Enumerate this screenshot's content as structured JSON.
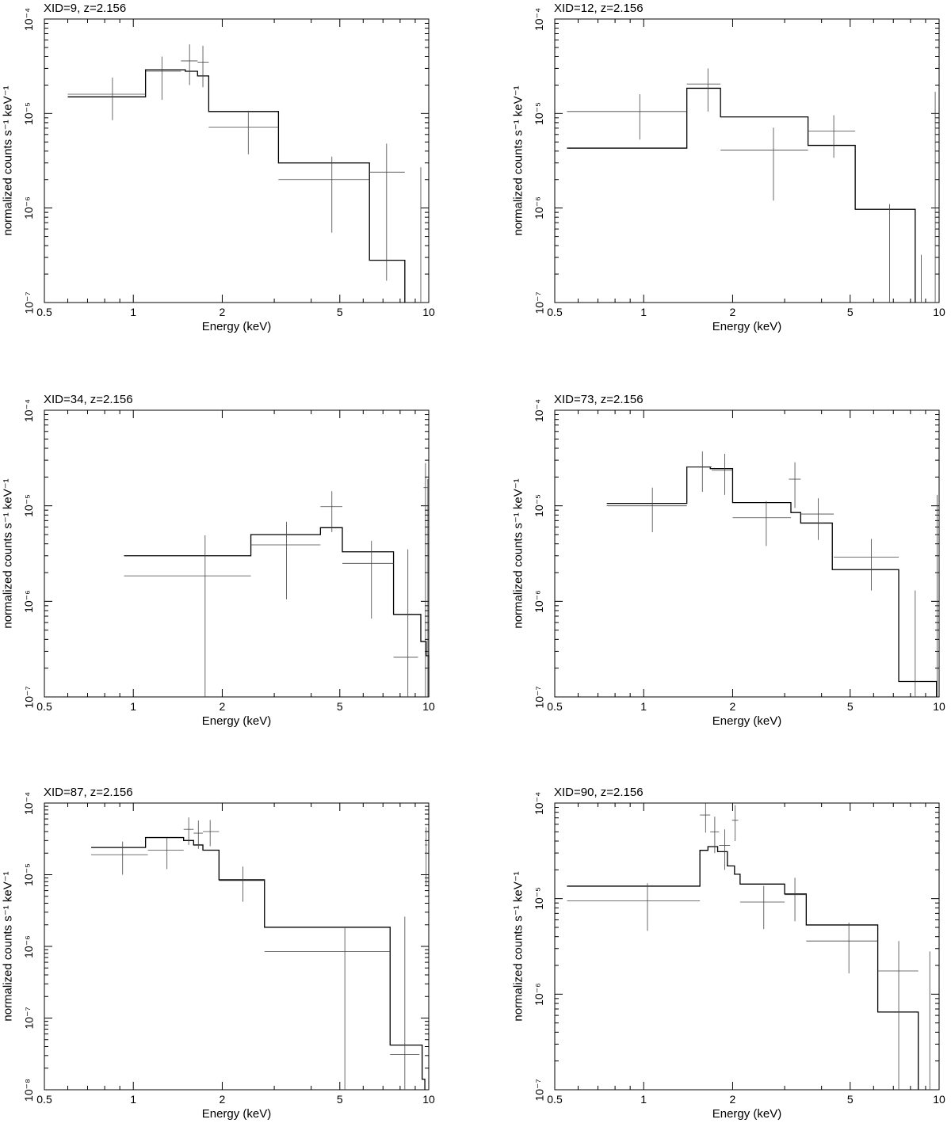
{
  "chart_data": [
    {
      "type": "step",
      "title": "XID=9, z=2.156",
      "xlabel": "Energy (keV)",
      "ylabel": "normalized counts s⁻¹ keV⁻¹",
      "xscale": "log",
      "yscale": "log",
      "xlim": [
        0.5,
        10
      ],
      "ylim": [
        1e-07,
        0.0001
      ],
      "xticks": [
        0.5,
        1,
        2,
        5,
        10
      ],
      "xtick_labels": [
        "0.5",
        "1",
        "2",
        "5",
        "10"
      ],
      "yticks": [
        1e-07,
        1e-06,
        1e-05,
        0.0001
      ],
      "ytick_labels": [
        "10⁻⁷",
        "10⁻⁶",
        "10⁻⁵",
        "10⁻⁴"
      ],
      "model": [
        [
          0.6,
          1.1,
          1.5e-05
        ],
        [
          1.1,
          1.5,
          2.9e-05
        ],
        [
          1.5,
          1.65,
          2.8e-05
        ],
        [
          1.65,
          1.8,
          2.5e-05
        ],
        [
          1.8,
          3.1,
          1.05e-05
        ],
        [
          3.1,
          6.3,
          3e-06
        ],
        [
          6.3,
          8.3,
          2.8e-07
        ]
      ],
      "data": [
        {
          "x": 0.85,
          "xlo": 0.6,
          "xhi": 1.1,
          "y": 1.6e-05,
          "ylo": 8.5e-06,
          "yhi": 2.4e-05
        },
        {
          "x": 1.25,
          "xlo": 1.1,
          "xhi": 1.45,
          "y": 2.8e-05,
          "ylo": 1.4e-05,
          "yhi": 4e-05
        },
        {
          "x": 1.55,
          "xlo": 1.45,
          "xhi": 1.65,
          "y": 3.6e-05,
          "ylo": 2e-05,
          "yhi": 5.4e-05
        },
        {
          "x": 1.72,
          "xlo": 1.65,
          "xhi": 1.8,
          "y": 3.5e-05,
          "ylo": 1.9e-05,
          "yhi": 5.2e-05
        },
        {
          "x": 2.45,
          "xlo": 1.8,
          "xhi": 3.1,
          "y": 7.2e-06,
          "ylo": 3.7e-06,
          "yhi": 1.07e-05
        },
        {
          "x": 4.7,
          "xlo": 3.1,
          "xhi": 6.3,
          "y": 2e-06,
          "ylo": 5.5e-07,
          "yhi": 3.5e-06
        },
        {
          "x": 7.2,
          "xlo": 6.3,
          "xhi": 8.3,
          "y": 2.4e-06,
          "ylo": 1.7e-07,
          "yhi": 4.8e-06
        },
        {
          "x": 9.4,
          "xlo": 9.4,
          "xhi": 9.4,
          "y": 2.7e-06,
          "ylo": 1e-07,
          "yhi": 2.7e-06
        }
      ]
    },
    {
      "type": "step",
      "title": "XID=12, z=2.156",
      "xlabel": "Energy (keV)",
      "ylabel": "normalized counts s⁻¹ keV⁻¹",
      "xscale": "log",
      "yscale": "log",
      "xlim": [
        0.5,
        10
      ],
      "ylim": [
        1e-07,
        0.0001
      ],
      "xticks": [
        0.5,
        1,
        2,
        5,
        10
      ],
      "xtick_labels": [
        "0.5",
        "1",
        "2",
        "5",
        "10"
      ],
      "yticks": [
        1e-07,
        1e-06,
        1e-05,
        0.0001
      ],
      "ytick_labels": [
        "10⁻⁷",
        "10⁻⁶",
        "10⁻⁵",
        "10⁻⁴"
      ],
      "model": [
        [
          0.55,
          1.4,
          4.3e-06
        ],
        [
          1.4,
          1.82,
          1.85e-05
        ],
        [
          1.82,
          3.6,
          9.2e-06
        ],
        [
          3.6,
          5.2,
          4.6e-06
        ],
        [
          5.2,
          8.3,
          9.7e-07
        ]
      ],
      "data": [
        {
          "x": 0.97,
          "xlo": 0.55,
          "xhi": 1.4,
          "y": 1.05e-05,
          "ylo": 5.3e-06,
          "yhi": 1.6e-05
        },
        {
          "x": 1.65,
          "xlo": 1.4,
          "xhi": 1.82,
          "y": 2.05e-05,
          "ylo": 1.05e-05,
          "yhi": 3e-05
        },
        {
          "x": 2.75,
          "xlo": 1.82,
          "xhi": 3.6,
          "y": 4.1e-06,
          "ylo": 1.2e-06,
          "yhi": 7.1e-06
        },
        {
          "x": 4.4,
          "xlo": 3.6,
          "xhi": 5.2,
          "y": 6.5e-06,
          "ylo": 3.4e-06,
          "yhi": 9.6e-06
        },
        {
          "x": 6.8,
          "xlo": 6.8,
          "xhi": 6.8,
          "y": 1.1e-06,
          "ylo": 1e-07,
          "yhi": 1.1e-06
        },
        {
          "x": 8.7,
          "xlo": 8.7,
          "xhi": 8.7,
          "y": 3.2e-07,
          "ylo": 1e-07,
          "yhi": 3.2e-07
        },
        {
          "x": 9.7,
          "xlo": 9.7,
          "xhi": 9.7,
          "y": 1.7e-05,
          "ylo": 1e-07,
          "yhi": 1.7e-05
        }
      ]
    },
    {
      "type": "step",
      "title": "XID=34, z=2.156",
      "xlabel": "Energy (keV)",
      "ylabel": "normalized counts s⁻¹ keV⁻¹",
      "xscale": "log",
      "yscale": "log",
      "xlim": [
        0.5,
        10
      ],
      "ylim": [
        1e-07,
        0.0001
      ],
      "xticks": [
        0.5,
        1,
        2,
        5,
        10
      ],
      "xtick_labels": [
        "0.5",
        "1",
        "2",
        "5",
        "10"
      ],
      "yticks": [
        1e-07,
        1e-06,
        1e-05,
        0.0001
      ],
      "ytick_labels": [
        "10⁻⁷",
        "10⁻⁶",
        "10⁻⁵",
        "10⁻⁴"
      ],
      "model": [
        [
          0.93,
          2.5,
          3e-06
        ],
        [
          2.5,
          4.3,
          5e-06
        ],
        [
          4.3,
          5.1,
          5.9e-06
        ],
        [
          5.1,
          7.6,
          3.3e-06
        ],
        [
          7.6,
          9.4,
          7.3e-07
        ],
        [
          9.4,
          9.8,
          3.8e-07
        ],
        [
          9.8,
          10.0,
          2.7e-07
        ]
      ],
      "data": [
        {
          "x": 1.75,
          "xlo": 0.93,
          "xhi": 2.5,
          "y": 1.85e-06,
          "ylo": 1e-07,
          "yhi": 4.9e-06
        },
        {
          "x": 3.3,
          "xlo": 2.5,
          "xhi": 4.3,
          "y": 3.9e-06,
          "ylo": 1.05e-06,
          "yhi": 6.8e-06
        },
        {
          "x": 4.7,
          "xlo": 4.3,
          "xhi": 5.1,
          "y": 9.8e-06,
          "ylo": 5.3e-06,
          "yhi": 1.42e-05
        },
        {
          "x": 6.4,
          "xlo": 5.1,
          "xhi": 7.6,
          "y": 2.5e-06,
          "ylo": 6.6e-07,
          "yhi": 4.3e-06
        },
        {
          "x": 8.5,
          "xlo": 7.6,
          "xhi": 9.2,
          "y": 2.6e-07,
          "ylo": 1e-07,
          "yhi": 3.5e-06
        },
        {
          "x": 9.75,
          "xlo": 9.6,
          "xhi": 9.9,
          "y": 1.55e-05,
          "ylo": 1e-07,
          "yhi": 2.8e-05
        },
        {
          "x": 9.93,
          "xlo": 9.93,
          "xhi": 9.93,
          "y": 1.9e-05,
          "ylo": 1e-07,
          "yhi": 1.9e-05
        }
      ]
    },
    {
      "type": "step",
      "title": "XID=73, z=2.156",
      "xlabel": "Energy (keV)",
      "ylabel": "normalized counts s⁻¹ keV⁻¹",
      "xscale": "log",
      "yscale": "log",
      "xlim": [
        0.5,
        10
      ],
      "ylim": [
        1e-07,
        0.0001
      ],
      "xticks": [
        0.5,
        1,
        2,
        5,
        10
      ],
      "xtick_labels": [
        "0.5",
        "1",
        "2",
        "5",
        "10"
      ],
      "yticks": [
        1e-07,
        1e-06,
        1e-05,
        0.0001
      ],
      "ytick_labels": [
        "10⁻⁷",
        "10⁻⁶",
        "10⁻⁵",
        "10⁻⁴"
      ],
      "model": [
        [
          0.75,
          1.4,
          1.06e-05
        ],
        [
          1.4,
          1.68,
          2.55e-05
        ],
        [
          1.68,
          2.0,
          2.45e-05
        ],
        [
          2.0,
          3.15,
          1.08e-05
        ],
        [
          3.15,
          3.4,
          8.5e-06
        ],
        [
          3.4,
          4.35,
          6.6e-06
        ],
        [
          4.35,
          7.3,
          2.15e-06
        ],
        [
          7.3,
          9.8,
          1.45e-07
        ]
      ],
      "data": [
        {
          "x": 1.07,
          "xlo": 0.75,
          "xhi": 1.4,
          "y": 1e-05,
          "ylo": 5.3e-06,
          "yhi": 1.55e-05
        },
        {
          "x": 1.58,
          "xlo": 1.4,
          "xhi": 1.7,
          "y": 2.55e-05,
          "ylo": 1.4e-05,
          "yhi": 3.7e-05
        },
        {
          "x": 1.88,
          "xlo": 1.7,
          "xhi": 2.0,
          "y": 2.35e-05,
          "ylo": 1.3e-05,
          "yhi": 3.5e-05
        },
        {
          "x": 2.6,
          "xlo": 2.0,
          "xhi": 3.15,
          "y": 7.5e-06,
          "ylo": 3.8e-06,
          "yhi": 1.12e-05
        },
        {
          "x": 3.25,
          "xlo": 3.1,
          "xhi": 3.4,
          "y": 1.9e-05,
          "ylo": 9.5e-06,
          "yhi": 2.85e-05
        },
        {
          "x": 3.9,
          "xlo": 3.4,
          "xhi": 4.4,
          "y": 8.2e-06,
          "ylo": 4.4e-06,
          "yhi": 1.2e-05
        },
        {
          "x": 5.9,
          "xlo": 4.4,
          "xhi": 7.3,
          "y": 2.9e-06,
          "ylo": 1.3e-06,
          "yhi": 4.5e-06
        },
        {
          "x": 8.3,
          "xlo": 8.3,
          "xhi": 8.3,
          "y": 1.3e-06,
          "ylo": 1e-07,
          "yhi": 1.3e-06
        },
        {
          "x": 9.85,
          "xlo": 9.85,
          "xhi": 9.85,
          "y": 1.3e-05,
          "ylo": 1e-07,
          "yhi": 1.3e-05
        }
      ]
    },
    {
      "type": "step",
      "title": "XID=87, z=2.156",
      "xlabel": "Energy (keV)",
      "ylabel": "normalized counts s⁻¹ keV⁻¹",
      "xscale": "log",
      "yscale": "log",
      "xlim": [
        0.5,
        10
      ],
      "ylim": [
        1e-08,
        0.0001
      ],
      "xticks": [
        0.5,
        1,
        2,
        5,
        10
      ],
      "xtick_labels": [
        "0.5",
        "1",
        "2",
        "5",
        "10"
      ],
      "yticks": [
        1e-08,
        1e-07,
        1e-06,
        1e-05,
        0.0001
      ],
      "ytick_labels": [
        "10⁻⁸",
        "10⁻⁷",
        "10⁻⁶",
        "10⁻⁵",
        "10⁻⁴"
      ],
      "model": [
        [
          0.72,
          1.1,
          2.4e-05
        ],
        [
          1.1,
          1.48,
          3.3e-05
        ],
        [
          1.48,
          1.6,
          3e-05
        ],
        [
          1.6,
          1.72,
          2.6e-05
        ],
        [
          1.72,
          1.95,
          2.2e-05
        ],
        [
          1.95,
          2.78,
          8.5e-06
        ],
        [
          2.78,
          7.4,
          1.85e-06
        ],
        [
          7.4,
          9.5,
          4.2e-08
        ],
        [
          9.5,
          9.7,
          1.4e-08
        ]
      ],
      "data": [
        {
          "x": 0.92,
          "xlo": 0.72,
          "xhi": 1.12,
          "y": 1.9e-05,
          "ylo": 1e-05,
          "yhi": 2.9e-05
        },
        {
          "x": 1.3,
          "xlo": 1.12,
          "xhi": 1.48,
          "y": 2.2e-05,
          "ylo": 1.2e-05,
          "yhi": 3.3e-05
        },
        {
          "x": 1.54,
          "xlo": 1.48,
          "xhi": 1.6,
          "y": 4.3e-05,
          "ylo": 2.6e-05,
          "yhi": 6.3e-05
        },
        {
          "x": 1.66,
          "xlo": 1.6,
          "xhi": 1.72,
          "y": 3.8e-05,
          "ylo": 2.3e-05,
          "yhi": 5.7e-05
        },
        {
          "x": 1.82,
          "xlo": 1.72,
          "xhi": 1.95,
          "y": 4e-05,
          "ylo": 2.5e-05,
          "yhi": 5.8e-05
        },
        {
          "x": 2.35,
          "xlo": 1.95,
          "xhi": 2.78,
          "y": 8.3e-06,
          "ylo": 4.2e-06,
          "yhi": 1.3e-05
        },
        {
          "x": 5.2,
          "xlo": 2.78,
          "xhi": 7.4,
          "y": 8.5e-07,
          "ylo": 1e-08,
          "yhi": 1.8e-06
        },
        {
          "x": 8.3,
          "xlo": 7.4,
          "xhi": 9.3,
          "y": 3.1e-08,
          "ylo": 1e-08,
          "yhi": 2.6e-06
        },
        {
          "x": 9.8,
          "xlo": 9.7,
          "xhi": 9.9,
          "y": 2.6e-05,
          "ylo": 7e-06,
          "yhi": 4.6e-05
        }
      ]
    },
    {
      "type": "step",
      "title": "XID=90, z=2.156",
      "xlabel": "Energy (keV)",
      "ylabel": "normalized counts s⁻¹ keV⁻¹",
      "xscale": "log",
      "yscale": "log",
      "xlim": [
        0.5,
        10
      ],
      "ylim": [
        1e-07,
        0.0001
      ],
      "xticks": [
        0.5,
        1,
        2,
        5,
        10
      ],
      "xtick_labels": [
        "0.5",
        "1",
        "2",
        "5",
        "10"
      ],
      "yticks": [
        1e-07,
        1e-06,
        1e-05,
        0.0001
      ],
      "ytick_labels": [
        "10⁻⁷",
        "10⁻⁶",
        "10⁻⁵",
        "10⁻⁴"
      ],
      "model": [
        [
          0.55,
          1.55,
          1.35e-05
        ],
        [
          1.55,
          1.65,
          3.2e-05
        ],
        [
          1.65,
          1.78,
          3.5e-05
        ],
        [
          1.78,
          1.92,
          3.1e-05
        ],
        [
          1.92,
          2.03,
          2.2e-05
        ],
        [
          2.03,
          2.12,
          1.8e-05
        ],
        [
          2.12,
          3.0,
          1.42e-05
        ],
        [
          3.0,
          3.55,
          1.12e-05
        ],
        [
          3.55,
          6.2,
          5.3e-06
        ],
        [
          6.2,
          8.5,
          6.5e-07
        ]
      ],
      "data": [
        {
          "x": 1.03,
          "xlo": 0.55,
          "xhi": 1.55,
          "y": 9.5e-06,
          "ylo": 4.6e-06,
          "yhi": 1.45e-05
        },
        {
          "x": 1.62,
          "xlo": 1.55,
          "xhi": 1.68,
          "y": 7.5e-05,
          "ylo": 4.9e-05,
          "yhi": 0.0001
        },
        {
          "x": 1.74,
          "xlo": 1.68,
          "xhi": 1.8,
          "y": 5e-05,
          "ylo": 3e-05,
          "yhi": 7.2e-05
        },
        {
          "x": 1.88,
          "xlo": 1.8,
          "xhi": 1.96,
          "y": 3.6e-05,
          "ylo": 2e-05,
          "yhi": 5.3e-05
        },
        {
          "x": 2.04,
          "xlo": 1.99,
          "xhi": 2.09,
          "y": 6.6e-05,
          "ylo": 4e-05,
          "yhi": 9.5e-05
        },
        {
          "x": 2.55,
          "xlo": 2.12,
          "xhi": 3.0,
          "y": 9.2e-06,
          "ylo": 4.8e-06,
          "yhi": 1.36e-05
        },
        {
          "x": 3.25,
          "xlo": 3.0,
          "xhi": 3.55,
          "y": 1.1e-05,
          "ylo": 5.8e-06,
          "yhi": 1.65e-05
        },
        {
          "x": 4.95,
          "xlo": 3.55,
          "xhi": 6.2,
          "y": 3.6e-06,
          "ylo": 1.65e-06,
          "yhi": 5.6e-06
        },
        {
          "x": 7.3,
          "xlo": 6.2,
          "xhi": 8.5,
          "y": 1.75e-06,
          "ylo": 1e-07,
          "yhi": 3.6e-06
        },
        {
          "x": 9.3,
          "xlo": 9.3,
          "xhi": 9.3,
          "y": 2.8e-06,
          "ylo": 1e-07,
          "yhi": 2.8e-06
        }
      ]
    }
  ]
}
